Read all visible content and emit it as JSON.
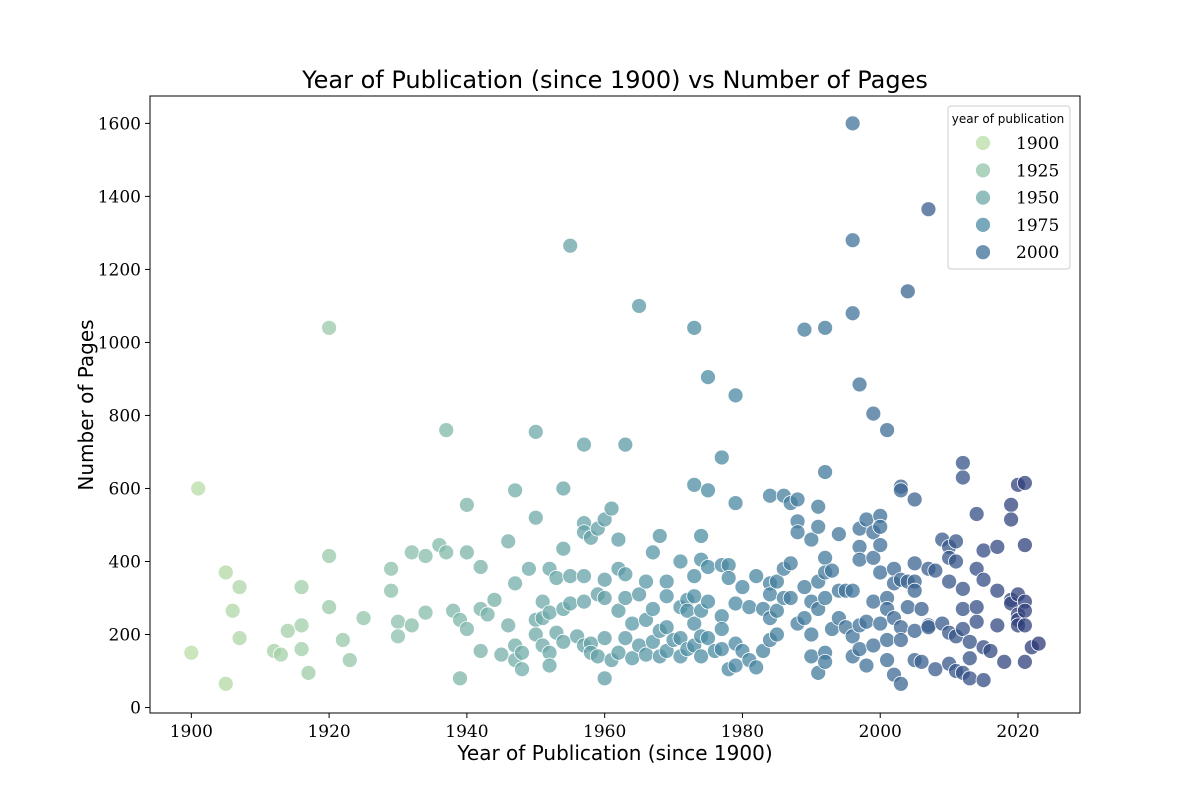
{
  "chart_data": {
    "type": "scatter",
    "title": "Year of Publication (since 1900) vs Number of Pages",
    "xlabel": "Year of Publication (since 1900)",
    "ylabel": "Number of Pages",
    "xlim": [
      1894,
      2029
    ],
    "ylim": [
      -15,
      1675
    ],
    "xticks": [
      1900,
      1920,
      1940,
      1960,
      1980,
      2000,
      2020
    ],
    "yticks": [
      0,
      200,
      400,
      600,
      800,
      1000,
      1200,
      1400,
      1600
    ],
    "grid": false,
    "legend": {
      "title": "year of publication",
      "placement": "top-right",
      "entries": [
        {
          "label": "1900",
          "year": 1900
        },
        {
          "label": "1925",
          "year": 1925
        },
        {
          "label": "1950",
          "year": 1950
        },
        {
          "label": "1975",
          "year": 1975
        },
        {
          "label": "2000",
          "year": 2000
        }
      ]
    },
    "hue": {
      "variable": "year of publication",
      "stops": [
        {
          "year": 1900,
          "color": "#b9dda6"
        },
        {
          "year": 1925,
          "color": "#92c4a9"
        },
        {
          "year": 1950,
          "color": "#6eaaa8"
        },
        {
          "year": 1975,
          "color": "#4b8ca3"
        },
        {
          "year": 2000,
          "color": "#3e6e97"
        },
        {
          "year": 2023,
          "color": "#2e3a78"
        }
      ]
    },
    "points": [
      [
        1900,
        150
      ],
      [
        1901,
        600
      ],
      [
        1905,
        370
      ],
      [
        1905,
        65
      ],
      [
        1906,
        265
      ],
      [
        1907,
        330
      ],
      [
        1907,
        190
      ],
      [
        1912,
        155
      ],
      [
        1913,
        145
      ],
      [
        1914,
        210
      ],
      [
        1916,
        330
      ],
      [
        1916,
        225
      ],
      [
        1916,
        160
      ],
      [
        1917,
        95
      ],
      [
        1920,
        1040
      ],
      [
        1920,
        415
      ],
      [
        1920,
        275
      ],
      [
        1922,
        185
      ],
      [
        1923,
        130
      ],
      [
        1925,
        245
      ],
      [
        1929,
        380
      ],
      [
        1929,
        320
      ],
      [
        1930,
        235
      ],
      [
        1930,
        195
      ],
      [
        1932,
        425
      ],
      [
        1932,
        225
      ],
      [
        1934,
        415
      ],
      [
        1934,
        260
      ],
      [
        1936,
        445
      ],
      [
        1937,
        760
      ],
      [
        1937,
        425
      ],
      [
        1938,
        265
      ],
      [
        1939,
        240
      ],
      [
        1939,
        80
      ],
      [
        1940,
        555
      ],
      [
        1940,
        425
      ],
      [
        1940,
        215
      ],
      [
        1942,
        385
      ],
      [
        1942,
        270
      ],
      [
        1942,
        155
      ],
      [
        1943,
        255
      ],
      [
        1944,
        295
      ],
      [
        1945,
        145
      ],
      [
        1946,
        455
      ],
      [
        1946,
        225
      ],
      [
        1947,
        595
      ],
      [
        1947,
        340
      ],
      [
        1947,
        170
      ],
      [
        1947,
        130
      ],
      [
        1948,
        105
      ],
      [
        1948,
        150
      ],
      [
        1949,
        380
      ],
      [
        1950,
        755
      ],
      [
        1950,
        520
      ],
      [
        1950,
        240
      ],
      [
        1950,
        200
      ],
      [
        1951,
        290
      ],
      [
        1951,
        170
      ],
      [
        1951,
        245
      ],
      [
        1952,
        380
      ],
      [
        1952,
        260
      ],
      [
        1952,
        150
      ],
      [
        1952,
        115
      ],
      [
        1953,
        355
      ],
      [
        1953,
        205
      ],
      [
        1954,
        600
      ],
      [
        1954,
        435
      ],
      [
        1954,
        270
      ],
      [
        1954,
        180
      ],
      [
        1955,
        1265
      ],
      [
        1955,
        360
      ],
      [
        1955,
        285
      ],
      [
        1956,
        195
      ],
      [
        1957,
        720
      ],
      [
        1957,
        505
      ],
      [
        1957,
        480
      ],
      [
        1957,
        360
      ],
      [
        1957,
        290
      ],
      [
        1957,
        170
      ],
      [
        1958,
        465
      ],
      [
        1958,
        175
      ],
      [
        1958,
        150
      ],
      [
        1959,
        490
      ],
      [
        1959,
        310
      ],
      [
        1959,
        140
      ],
      [
        1960,
        515
      ],
      [
        1960,
        350
      ],
      [
        1960,
        300
      ],
      [
        1960,
        190
      ],
      [
        1960,
        80
      ],
      [
        1961,
        545
      ],
      [
        1961,
        130
      ],
      [
        1962,
        460
      ],
      [
        1962,
        380
      ],
      [
        1962,
        265
      ],
      [
        1962,
        150
      ],
      [
        1963,
        720
      ],
      [
        1963,
        365
      ],
      [
        1963,
        300
      ],
      [
        1963,
        190
      ],
      [
        1964,
        230
      ],
      [
        1964,
        135
      ],
      [
        1965,
        1100
      ],
      [
        1965,
        310
      ],
      [
        1965,
        170
      ],
      [
        1966,
        345
      ],
      [
        1966,
        240
      ],
      [
        1966,
        145
      ],
      [
        1967,
        425
      ],
      [
        1967,
        270
      ],
      [
        1967,
        180
      ],
      [
        1968,
        470
      ],
      [
        1968,
        210
      ],
      [
        1968,
        140
      ],
      [
        1969,
        345
      ],
      [
        1969,
        305
      ],
      [
        1969,
        220
      ],
      [
        1969,
        155
      ],
      [
        1970,
        185
      ],
      [
        1971,
        400
      ],
      [
        1971,
        275
      ],
      [
        1971,
        190
      ],
      [
        1971,
        140
      ],
      [
        1972,
        295
      ],
      [
        1972,
        265
      ],
      [
        1972,
        160
      ],
      [
        1973,
        1040
      ],
      [
        1973,
        610
      ],
      [
        1973,
        360
      ],
      [
        1973,
        305
      ],
      [
        1973,
        230
      ],
      [
        1973,
        170
      ],
      [
        1974,
        470
      ],
      [
        1974,
        405
      ],
      [
        1974,
        265
      ],
      [
        1974,
        195
      ],
      [
        1974,
        140
      ],
      [
        1975,
        905
      ],
      [
        1975,
        595
      ],
      [
        1975,
        385
      ],
      [
        1975,
        290
      ],
      [
        1975,
        190
      ],
      [
        1976,
        155
      ],
      [
        1977,
        685
      ],
      [
        1977,
        390
      ],
      [
        1977,
        250
      ],
      [
        1977,
        215
      ],
      [
        1977,
        160
      ],
      [
        1978,
        390
      ],
      [
        1978,
        355
      ],
      [
        1978,
        105
      ],
      [
        1979,
        855
      ],
      [
        1979,
        560
      ],
      [
        1979,
        285
      ],
      [
        1979,
        175
      ],
      [
        1979,
        115
      ],
      [
        1980,
        330
      ],
      [
        1980,
        155
      ],
      [
        1981,
        275
      ],
      [
        1981,
        130
      ],
      [
        1982,
        360
      ],
      [
        1982,
        110
      ],
      [
        1983,
        270
      ],
      [
        1983,
        155
      ],
      [
        1984,
        580
      ],
      [
        1984,
        340
      ],
      [
        1984,
        310
      ],
      [
        1984,
        245
      ],
      [
        1984,
        185
      ],
      [
        1985,
        345
      ],
      [
        1985,
        265
      ],
      [
        1985,
        200
      ],
      [
        1986,
        580
      ],
      [
        1986,
        300
      ],
      [
        1986,
        380
      ],
      [
        1987,
        560
      ],
      [
        1987,
        395
      ],
      [
        1987,
        300
      ],
      [
        1988,
        570
      ],
      [
        1988,
        510
      ],
      [
        1988,
        480
      ],
      [
        1988,
        230
      ],
      [
        1989,
        1035
      ],
      [
        1989,
        330
      ],
      [
        1989,
        245
      ],
      [
        1990,
        460
      ],
      [
        1990,
        290
      ],
      [
        1990,
        200
      ],
      [
        1990,
        140
      ],
      [
        1991,
        550
      ],
      [
        1991,
        495
      ],
      [
        1991,
        345
      ],
      [
        1991,
        270
      ],
      [
        1991,
        95
      ],
      [
        1992,
        1040
      ],
      [
        1992,
        645
      ],
      [
        1992,
        410
      ],
      [
        1992,
        370
      ],
      [
        1992,
        300
      ],
      [
        1992,
        150
      ],
      [
        1992,
        125
      ],
      [
        1993,
        375
      ],
      [
        1993,
        215
      ],
      [
        1994,
        475
      ],
      [
        1994,
        320
      ],
      [
        1994,
        245
      ],
      [
        1995,
        320
      ],
      [
        1995,
        220
      ],
      [
        1996,
        1600
      ],
      [
        1996,
        1280
      ],
      [
        1996,
        1080
      ],
      [
        1996,
        320
      ],
      [
        1996,
        195
      ],
      [
        1996,
        140
      ],
      [
        1997,
        885
      ],
      [
        1997,
        490
      ],
      [
        1997,
        440
      ],
      [
        1997,
        405
      ],
      [
        1997,
        225
      ],
      [
        1997,
        160
      ],
      [
        1998,
        515
      ],
      [
        1998,
        235
      ],
      [
        1998,
        115
      ],
      [
        1999,
        805
      ],
      [
        1999,
        480
      ],
      [
        1999,
        410
      ],
      [
        1999,
        290
      ],
      [
        1999,
        170
      ],
      [
        2000,
        525
      ],
      [
        2000,
        495
      ],
      [
        2000,
        445
      ],
      [
        2000,
        370
      ],
      [
        2000,
        230
      ],
      [
        2001,
        760
      ],
      [
        2001,
        300
      ],
      [
        2001,
        270
      ],
      [
        2001,
        185
      ],
      [
        2001,
        130
      ],
      [
        2002,
        380
      ],
      [
        2002,
        340
      ],
      [
        2002,
        245
      ],
      [
        2002,
        90
      ],
      [
        2003,
        605
      ],
      [
        2003,
        595
      ],
      [
        2003,
        350
      ],
      [
        2003,
        220
      ],
      [
        2003,
        185
      ],
      [
        2003,
        65
      ],
      [
        2004,
        1140
      ],
      [
        2004,
        345
      ],
      [
        2004,
        275
      ],
      [
        2005,
        570
      ],
      [
        2005,
        395
      ],
      [
        2005,
        345
      ],
      [
        2005,
        320
      ],
      [
        2005,
        210
      ],
      [
        2005,
        130
      ],
      [
        2006,
        270
      ],
      [
        2006,
        125
      ],
      [
        2007,
        1365
      ],
      [
        2007,
        380
      ],
      [
        2007,
        225
      ],
      [
        2007,
        220
      ],
      [
        2008,
        375
      ],
      [
        2008,
        105
      ],
      [
        2009,
        460
      ],
      [
        2009,
        230
      ],
      [
        2010,
        440
      ],
      [
        2010,
        410
      ],
      [
        2010,
        345
      ],
      [
        2010,
        205
      ],
      [
        2010,
        120
      ],
      [
        2011,
        455
      ],
      [
        2011,
        400
      ],
      [
        2011,
        195
      ],
      [
        2011,
        100
      ],
      [
        2012,
        670
      ],
      [
        2012,
        630
      ],
      [
        2012,
        325
      ],
      [
        2012,
        270
      ],
      [
        2012,
        215
      ],
      [
        2012,
        95
      ],
      [
        2013,
        180
      ],
      [
        2013,
        135
      ],
      [
        2013,
        80
      ],
      [
        2014,
        530
      ],
      [
        2014,
        380
      ],
      [
        2014,
        275
      ],
      [
        2014,
        235
      ],
      [
        2015,
        430
      ],
      [
        2015,
        350
      ],
      [
        2015,
        165
      ],
      [
        2015,
        75
      ],
      [
        2016,
        155
      ],
      [
        2017,
        440
      ],
      [
        2017,
        320
      ],
      [
        2017,
        225
      ],
      [
        2018,
        125
      ],
      [
        2019,
        555
      ],
      [
        2019,
        515
      ],
      [
        2019,
        295
      ],
      [
        2019,
        285
      ],
      [
        2020,
        610
      ],
      [
        2020,
        310
      ],
      [
        2020,
        255
      ],
      [
        2020,
        240
      ],
      [
        2020,
        225
      ],
      [
        2021,
        615
      ],
      [
        2021,
        445
      ],
      [
        2021,
        290
      ],
      [
        2021,
        265
      ],
      [
        2021,
        225
      ],
      [
        2021,
        125
      ],
      [
        2022,
        165
      ],
      [
        2023,
        175
      ]
    ]
  }
}
